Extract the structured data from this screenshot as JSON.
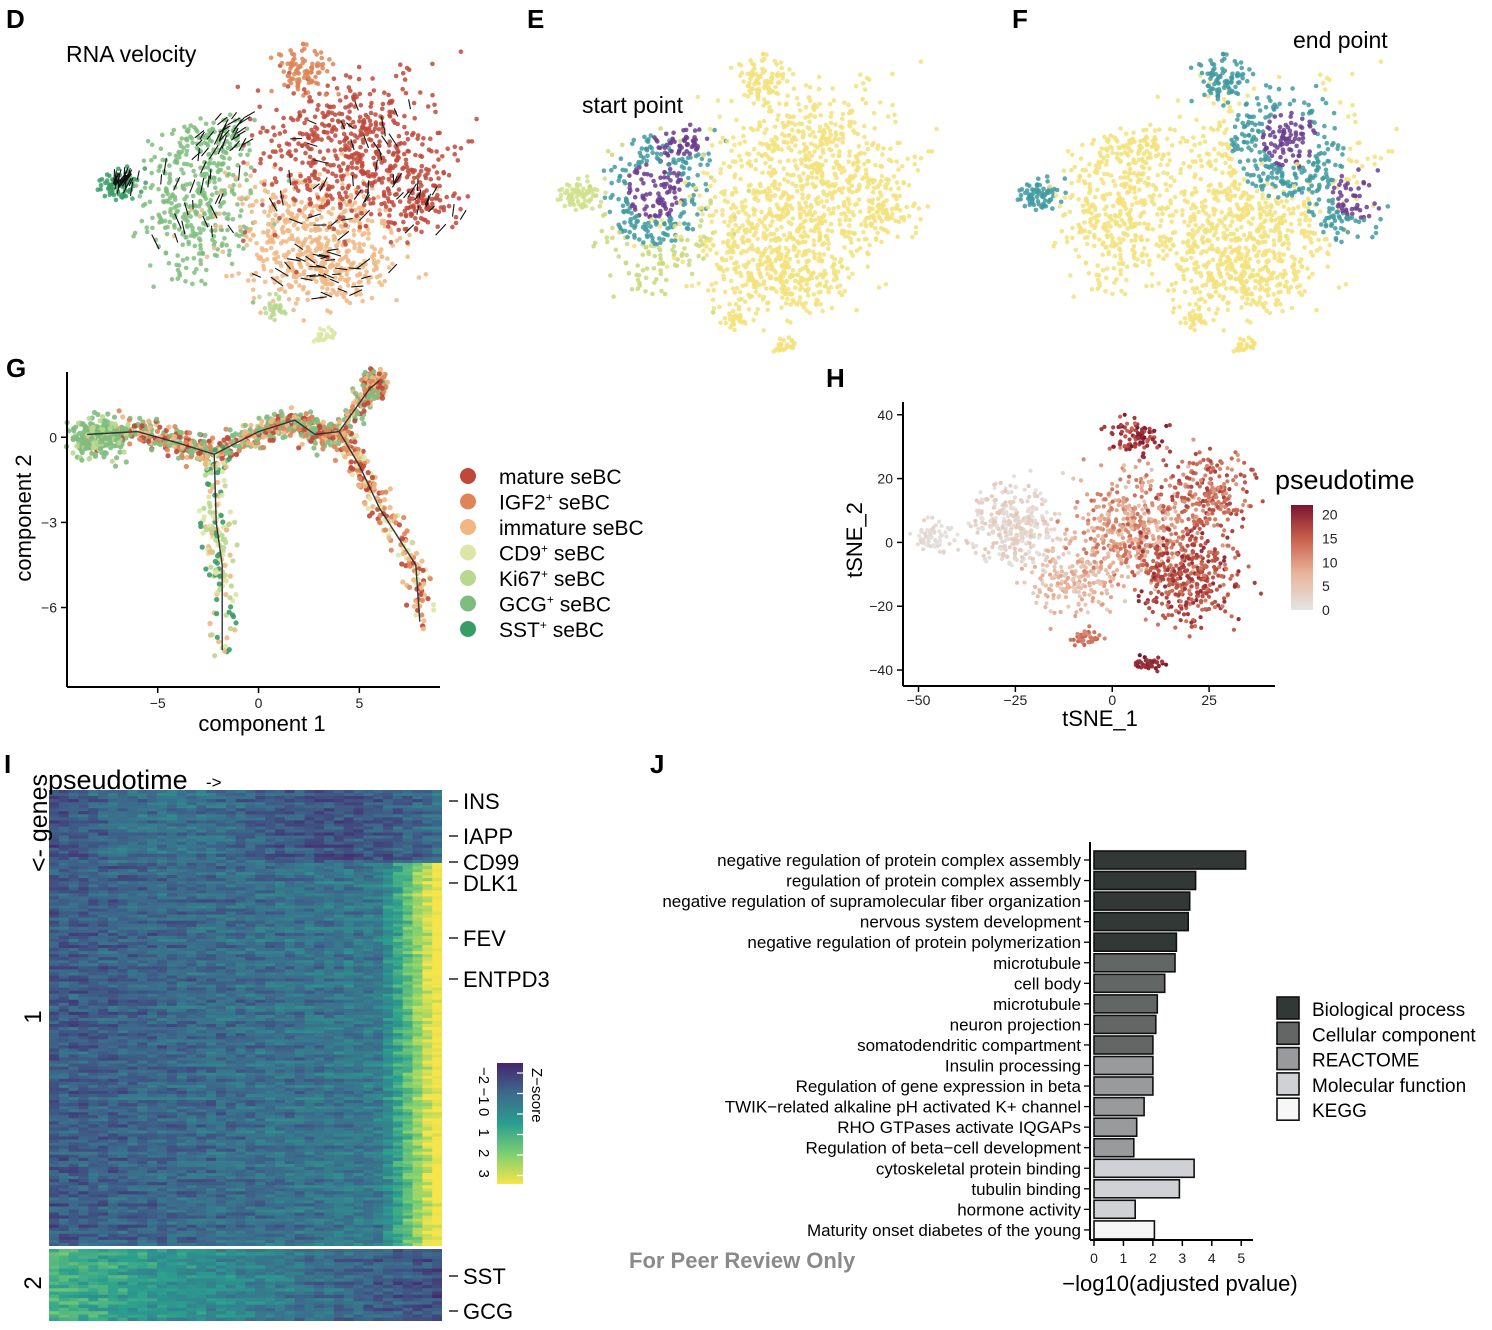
{
  "panels": {
    "D": {
      "letter": "D",
      "annotation": "RNA velocity"
    },
    "E": {
      "letter": "E",
      "annotation": "start point"
    },
    "F": {
      "letter": "F",
      "annotation": "end point"
    },
    "G": {
      "letter": "G"
    },
    "H": {
      "letter": "H"
    },
    "I": {
      "letter": "I"
    },
    "J": {
      "letter": "J"
    }
  },
  "colors": {
    "mature": "#c0483a",
    "igf2": "#dd8557",
    "immature": "#f0b783",
    "cd9": "#dde6a6",
    "ki67": "#b9d88f",
    "gcg": "#7fbd7f",
    "sst": "#3a9c65",
    "yellow": "#f3e27a",
    "purple": "#6a3d8f",
    "teal": "#3f9aa0"
  },
  "chart_data": [
    {
      "id": "G",
      "type": "scatter",
      "xlabel": "component 1",
      "ylabel": "component 2",
      "xlim": [
        -9.5,
        9
      ],
      "ylim": [
        -8.8,
        2.3
      ],
      "xticks": [
        -5,
        0,
        5
      ],
      "xtick_labels": [
        "−5",
        "0",
        "5"
      ],
      "yticks": [
        0,
        -3,
        -6
      ],
      "ytick_labels": [
        "0",
        "−3",
        "−6"
      ],
      "legend": [
        {
          "sym": "mature seBC",
          "label": "mature seBC",
          "sup": "",
          "tail": "",
          "color": "#c0483a"
        },
        {
          "sym": "IGF2+ seBC",
          "label": "IGF2",
          "sup": "+",
          "tail": " seBC",
          "color": "#dd8557"
        },
        {
          "sym": "immature seBC",
          "label": "immature seBC",
          "sup": "",
          "tail": "",
          "color": "#f0b783"
        },
        {
          "sym": "CD9+ seBC",
          "label": "CD9",
          "sup": "+",
          "tail": " seBC",
          "color": "#dde6a6"
        },
        {
          "sym": "Ki67+ seBC",
          "label": "Ki67",
          "sup": "+",
          "tail": " seBC",
          "color": "#b9d88f"
        },
        {
          "sym": "GCG+ seBC",
          "label": "GCG",
          "sup": "+",
          "tail": " seBC",
          "color": "#7fbd7f"
        },
        {
          "sym": "SST+ seBC",
          "label": "SST",
          "sup": "+",
          "tail": " seBC",
          "color": "#3a9c65"
        }
      ],
      "trajectory": {
        "trunk": [
          [
            -8.5,
            0.1
          ],
          [
            -6,
            0.2
          ],
          [
            -4,
            -0.2
          ],
          [
            -2.2,
            -0.6
          ],
          [
            0,
            0.2
          ],
          [
            1.8,
            0.6
          ],
          [
            2.8,
            0.1
          ],
          [
            4,
            0.2
          ],
          [
            5.5,
            1.7
          ],
          [
            6,
            2
          ]
        ],
        "branch_down": [
          [
            -2.2,
            -0.6
          ],
          [
            -2.1,
            -3
          ],
          [
            -1.8,
            -4.5
          ],
          [
            -1.8,
            -7.5
          ]
        ],
        "branch_right": [
          [
            4,
            0.2
          ],
          [
            5,
            -1
          ],
          [
            6,
            -2.5
          ],
          [
            7.8,
            -4.5
          ],
          [
            8,
            -6.5
          ]
        ]
      }
    },
    {
      "id": "H",
      "type": "scatter",
      "xlabel": "tSNE_1",
      "ylabel": "tSNE_2",
      "xlim": [
        -54,
        42
      ],
      "ylim": [
        -45,
        44
      ],
      "xticks": [
        -50,
        -25,
        0,
        25
      ],
      "xtick_labels": [
        "−50",
        "−25",
        "0",
        "25"
      ],
      "yticks": [
        40,
        20,
        0,
        -20,
        -40
      ],
      "ytick_labels": [
        "40",
        "20",
        "0",
        "−20",
        "−40"
      ],
      "legend_title": "pseudotime",
      "colorbar_ticks": [
        "20",
        "15",
        "10",
        "5",
        "0"
      ],
      "colorbar_values": [
        20,
        15,
        10,
        5,
        0
      ],
      "colorbar_range": [
        0,
        22
      ]
    },
    {
      "id": "I",
      "type": "heatmap",
      "x_title": "pseudotime",
      "x_arrow": "->",
      "y_title": "<- genes",
      "clusters": [
        "1",
        "2"
      ],
      "genes_cluster1": [
        "INS",
        "IAPP",
        "CD99",
        "DLK1",
        "FEV",
        "ENTPD3"
      ],
      "genes_cluster2": [
        "SST",
        "GCG"
      ],
      "colorbar_title": "Z−score",
      "colorbar_ticks": [
        "−2",
        "−1",
        "0",
        "1",
        "2",
        "3"
      ],
      "colorbar_range": [
        -2.5,
        3.5
      ]
    },
    {
      "id": "J",
      "type": "bar",
      "orientation": "horizontal",
      "xlabel": "−log10(adjusted pvalue)",
      "xlim": [
        0,
        5.4
      ],
      "xticks": [
        0,
        1,
        2,
        3,
        4,
        5
      ],
      "xtick_labels": [
        "0",
        "1",
        "2",
        "3",
        "4",
        "5"
      ],
      "categories": [
        "negative regulation of protein complex assembly",
        "regulation of protein complex assembly",
        "negative regulation of supramolecular fiber organization",
        "nervous system development",
        "negative regulation of protein polymerization",
        "microtubule",
        "cell body",
        "microtubule",
        "neuron projection",
        "somatodendritic compartment",
        "Insulin processing",
        "Regulation of gene expression in beta",
        "TWIK−related alkaline pH activated K+ channel",
        "RHO GTPases activate IQGAPs",
        "Regulation of beta−cell development",
        "cytoskeletal protein binding",
        "tubulin binding",
        "hormone activity",
        "Maturity onset diabetes of the young"
      ],
      "values": [
        5.15,
        3.45,
        3.25,
        3.2,
        2.8,
        2.75,
        2.4,
        2.15,
        2.1,
        2.0,
        2.0,
        2.0,
        1.7,
        1.45,
        1.35,
        3.4,
        2.9,
        1.4,
        2.05
      ],
      "groups": [
        "Biological process",
        "Biological process",
        "Biological process",
        "Biological process",
        "Biological process",
        "Cellular component",
        "Cellular component",
        "Cellular component",
        "Cellular component",
        "Cellular component",
        "REACTOME",
        "REACTOME",
        "REACTOME",
        "REACTOME",
        "REACTOME",
        "Molecular function",
        "Molecular function",
        "Molecular function",
        "KEGG"
      ],
      "legend": [
        {
          "label": "Biological process",
          "color": "#323836"
        },
        {
          "label": "Cellular component",
          "color": "#626766"
        },
        {
          "label": "REACTOME",
          "color": "#989a9c"
        },
        {
          "label": "Molecular function",
          "color": "#cfd1d4"
        },
        {
          "label": "KEGG",
          "color": "#f7f7f7"
        }
      ]
    }
  ],
  "watermark": "For Peer Review Only"
}
